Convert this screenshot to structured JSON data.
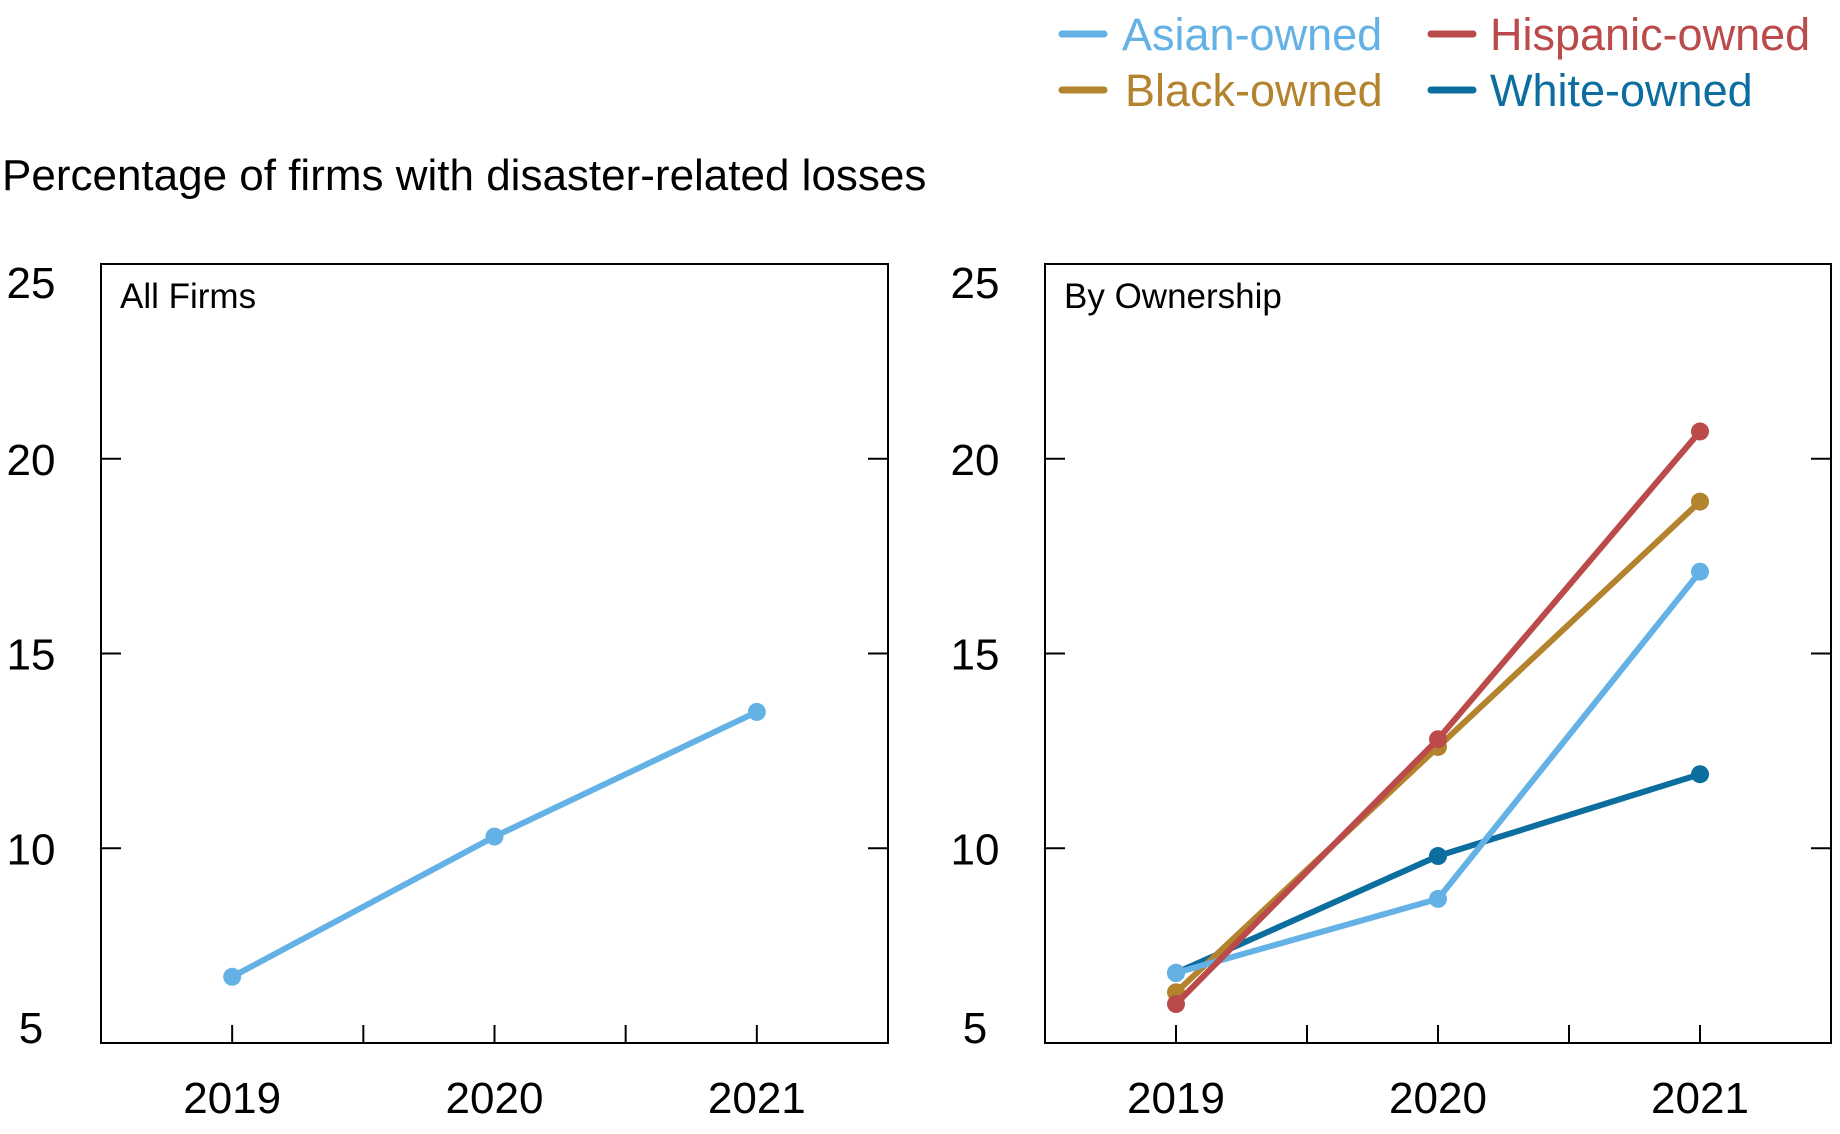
{
  "chart_data": [
    {
      "type": "line",
      "title": "All Firms",
      "ylabel": "Percentage of firms with disaster-related losses",
      "x": [
        "2019",
        "2020",
        "2021"
      ],
      "ylim": [
        5,
        25
      ],
      "yticks": [
        "5",
        "10",
        "15",
        "20",
        "25"
      ],
      "grid": false,
      "series": [
        {
          "values": [
            6.7,
            10.3,
            13.5
          ],
          "color": "#63b1e5"
        }
      ]
    },
    {
      "type": "line",
      "title": "By Ownership",
      "x": [
        "2019",
        "2020",
        "2021"
      ],
      "ylim": [
        5,
        25
      ],
      "yticks": [
        "5",
        "10",
        "15",
        "20",
        "25"
      ],
      "grid": false,
      "legend": "top-right",
      "series": [
        {
          "name": "Asian-owned",
          "values": [
            6.8,
            8.7,
            17.1
          ],
          "color": "#63b1e5"
        },
        {
          "name": "Hispanic-owned",
          "values": [
            6.0,
            12.8,
            20.7
          ],
          "color": "#bb4a4a"
        },
        {
          "name": "Black-owned",
          "values": [
            6.3,
            12.6,
            18.9
          ],
          "color": "#b3832e"
        },
        {
          "name": "White-owned",
          "values": [
            6.8,
            9.8,
            11.9
          ],
          "color": "#0b6e9e"
        }
      ]
    }
  ]
}
